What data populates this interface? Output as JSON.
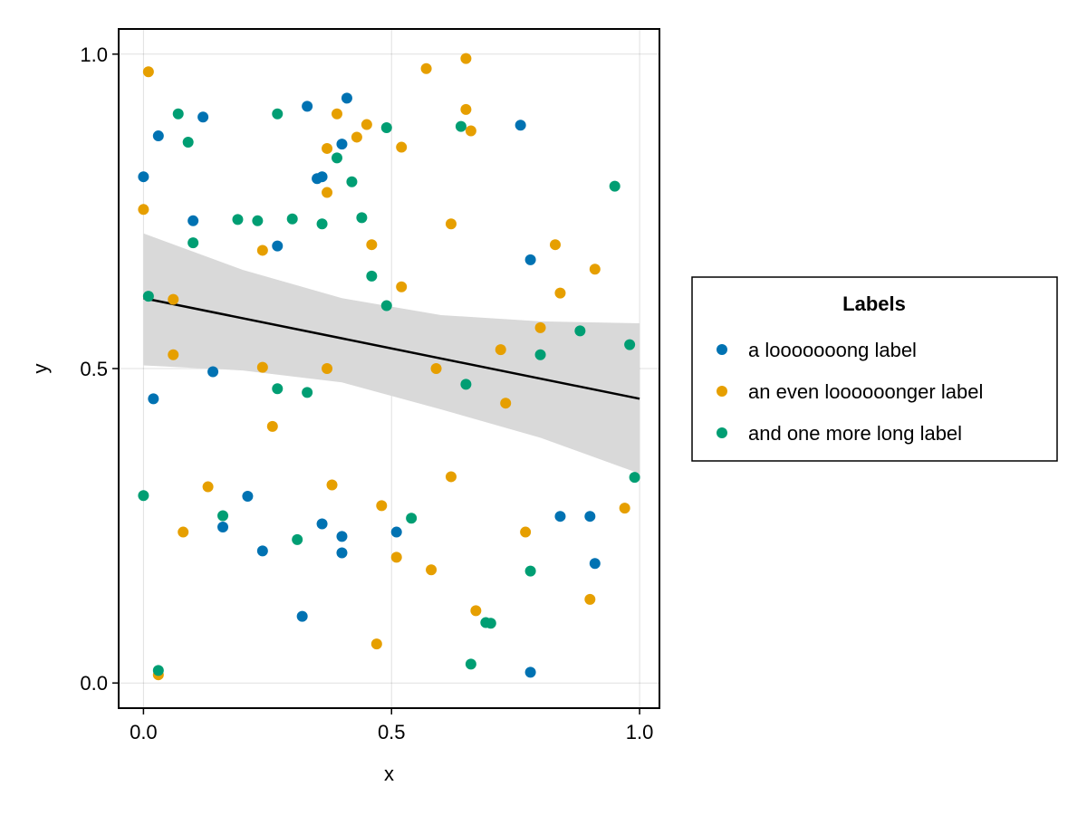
{
  "chart_data": {
    "type": "scatter",
    "title": "",
    "xlabel": "x",
    "ylabel": "y",
    "xlim": [
      -0.05,
      1.04
    ],
    "ylim": [
      -0.04,
      1.04
    ],
    "xticks": [
      "0.0",
      "0.5",
      "1.0"
    ],
    "yticks": [
      "0.0",
      "0.5",
      "1.0"
    ],
    "grid": true,
    "legend": {
      "title": "Labels",
      "placement": "right"
    },
    "series": [
      {
        "name": "a looooooong label",
        "color": "#0072B2",
        "points": [
          [
            0.0,
            0.805
          ],
          [
            0.03,
            0.87
          ],
          [
            0.12,
            0.9
          ],
          [
            0.1,
            0.735
          ],
          [
            0.27,
            0.695
          ],
          [
            0.33,
            0.917
          ],
          [
            0.41,
            0.93
          ],
          [
            0.4,
            0.857
          ],
          [
            0.35,
            0.802
          ],
          [
            0.36,
            0.805
          ],
          [
            0.76,
            0.887
          ],
          [
            0.78,
            0.673
          ],
          [
            0.14,
            0.495
          ],
          [
            0.02,
            0.452
          ],
          [
            0.21,
            0.297
          ],
          [
            0.16,
            0.248
          ],
          [
            0.24,
            0.21
          ],
          [
            0.36,
            0.253
          ],
          [
            0.4,
            0.233
          ],
          [
            0.4,
            0.207
          ],
          [
            0.32,
            0.106
          ],
          [
            0.51,
            0.24
          ],
          [
            0.84,
            0.265
          ],
          [
            0.9,
            0.265
          ],
          [
            0.91,
            0.19
          ],
          [
            0.78,
            0.017
          ]
        ]
      },
      {
        "name": "an even loooooonger label",
        "color": "#E69F00",
        "points": [
          [
            0.01,
            0.972
          ],
          [
            0.0,
            0.753
          ],
          [
            0.06,
            0.61
          ],
          [
            0.06,
            0.522
          ],
          [
            0.24,
            0.688
          ],
          [
            0.37,
            0.85
          ],
          [
            0.37,
            0.78
          ],
          [
            0.39,
            0.905
          ],
          [
            0.43,
            0.868
          ],
          [
            0.45,
            0.888
          ],
          [
            0.52,
            0.852
          ],
          [
            0.57,
            0.977
          ],
          [
            0.65,
            0.993
          ],
          [
            0.65,
            0.912
          ],
          [
            0.66,
            0.878
          ],
          [
            0.46,
            0.697
          ],
          [
            0.52,
            0.63
          ],
          [
            0.62,
            0.73
          ],
          [
            0.83,
            0.697
          ],
          [
            0.91,
            0.658
          ],
          [
            0.84,
            0.62
          ],
          [
            0.8,
            0.565
          ],
          [
            0.72,
            0.53
          ],
          [
            0.59,
            0.5
          ],
          [
            0.37,
            0.5
          ],
          [
            0.24,
            0.502
          ],
          [
            0.26,
            0.408
          ],
          [
            0.73,
            0.445
          ],
          [
            0.13,
            0.312
          ],
          [
            0.38,
            0.315
          ],
          [
            0.48,
            0.282
          ],
          [
            0.62,
            0.328
          ],
          [
            0.08,
            0.24
          ],
          [
            0.51,
            0.2
          ],
          [
            0.58,
            0.18
          ],
          [
            0.77,
            0.24
          ],
          [
            0.97,
            0.278
          ],
          [
            0.9,
            0.133
          ],
          [
            0.67,
            0.115
          ],
          [
            0.47,
            0.062
          ],
          [
            0.03,
            0.013
          ]
        ]
      },
      {
        "name": "and one more long label",
        "color": "#009E73",
        "points": [
          [
            0.07,
            0.905
          ],
          [
            0.09,
            0.86
          ],
          [
            0.27,
            0.905
          ],
          [
            0.49,
            0.883
          ],
          [
            0.64,
            0.885
          ],
          [
            0.39,
            0.835
          ],
          [
            0.42,
            0.797
          ],
          [
            0.44,
            0.74
          ],
          [
            0.36,
            0.73
          ],
          [
            0.3,
            0.738
          ],
          [
            0.23,
            0.735
          ],
          [
            0.19,
            0.737
          ],
          [
            0.1,
            0.7
          ],
          [
            0.01,
            0.615
          ],
          [
            0.46,
            0.647
          ],
          [
            0.49,
            0.6
          ],
          [
            0.95,
            0.79
          ],
          [
            0.88,
            0.56
          ],
          [
            0.98,
            0.538
          ],
          [
            0.8,
            0.522
          ],
          [
            0.65,
            0.475
          ],
          [
            0.27,
            0.468
          ],
          [
            0.33,
            0.462
          ],
          [
            0.0,
            0.298
          ],
          [
            0.16,
            0.266
          ],
          [
            0.31,
            0.228
          ],
          [
            0.54,
            0.262
          ],
          [
            0.78,
            0.178
          ],
          [
            0.99,
            0.327
          ],
          [
            0.69,
            0.096
          ],
          [
            0.7,
            0.095
          ],
          [
            0.66,
            0.03
          ],
          [
            0.03,
            0.02
          ]
        ]
      }
    ],
    "regression": {
      "color": "#000000",
      "band_color": "#d9d9d9",
      "x": [
        0.0,
        1.0
      ],
      "y": [
        0.612,
        0.452
      ],
      "band_x": [
        0.0,
        0.2,
        0.4,
        0.6,
        0.8,
        1.0
      ],
      "band_upper": [
        0.715,
        0.657,
        0.612,
        0.585,
        0.575,
        0.572
      ],
      "band_lower": [
        0.505,
        0.497,
        0.478,
        0.435,
        0.39,
        0.333
      ]
    }
  }
}
